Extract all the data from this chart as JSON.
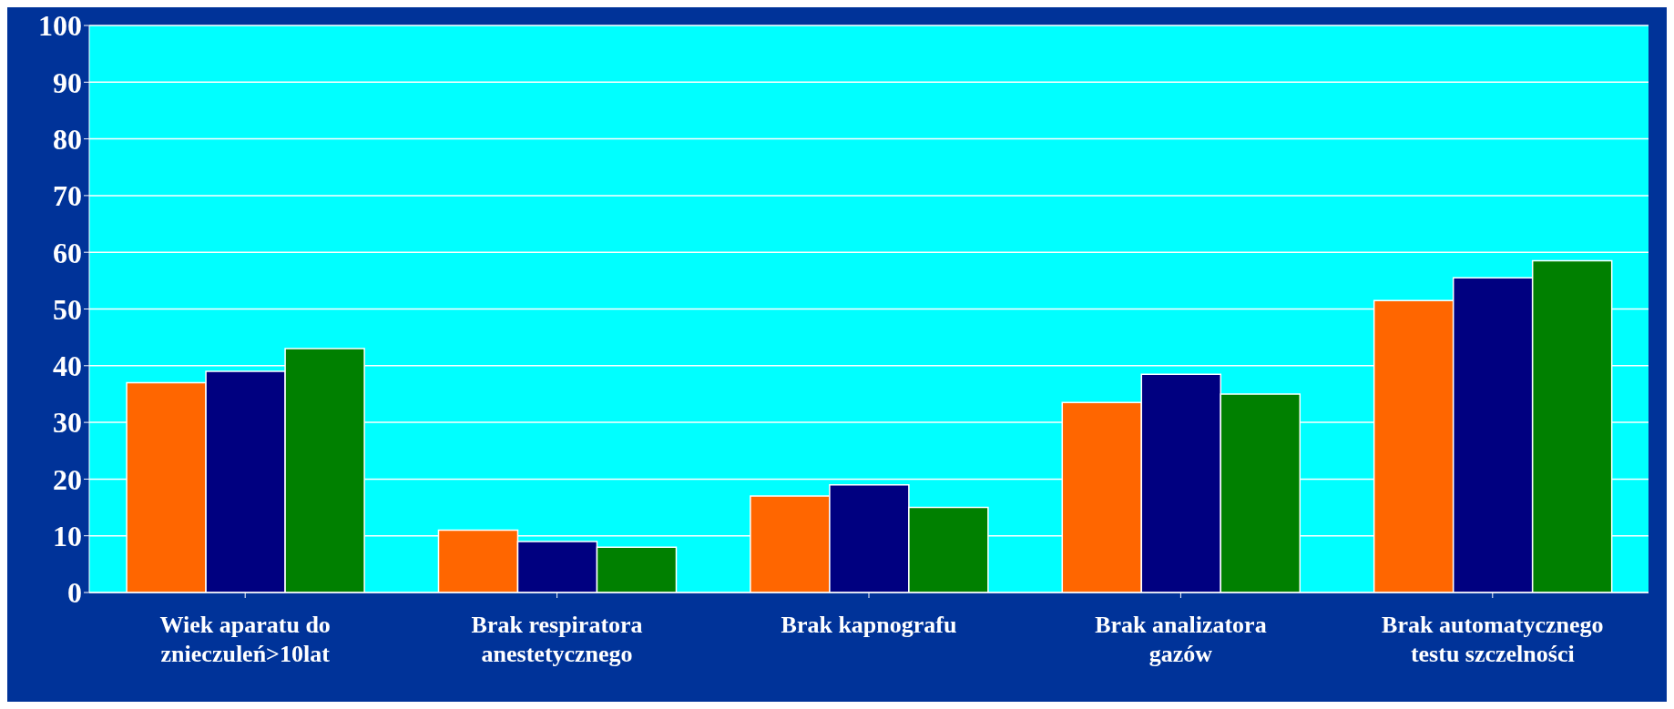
{
  "chart_data": {
    "type": "bar",
    "categories": [
      "Wiek aparatu do znieczuleń>10lat",
      "Brak respiratora anestetycznego",
      "Brak kapnografu",
      "Brak analizatora gazów",
      "Brak automatycznego testu szczelności"
    ],
    "series": [
      {
        "color": "#ff6600",
        "values": [
          37,
          11,
          17,
          33.5,
          51.5
        ]
      },
      {
        "color": "#000080",
        "values": [
          39,
          9,
          19,
          38.5,
          55.5
        ]
      },
      {
        "color": "#008000",
        "values": [
          43,
          8,
          15,
          35,
          58.5
        ]
      }
    ],
    "ylim": [
      0,
      100
    ],
    "yticks": [
      0,
      10,
      20,
      30,
      40,
      50,
      60,
      70,
      80,
      90,
      100
    ],
    "grid": "y",
    "legend": false
  }
}
